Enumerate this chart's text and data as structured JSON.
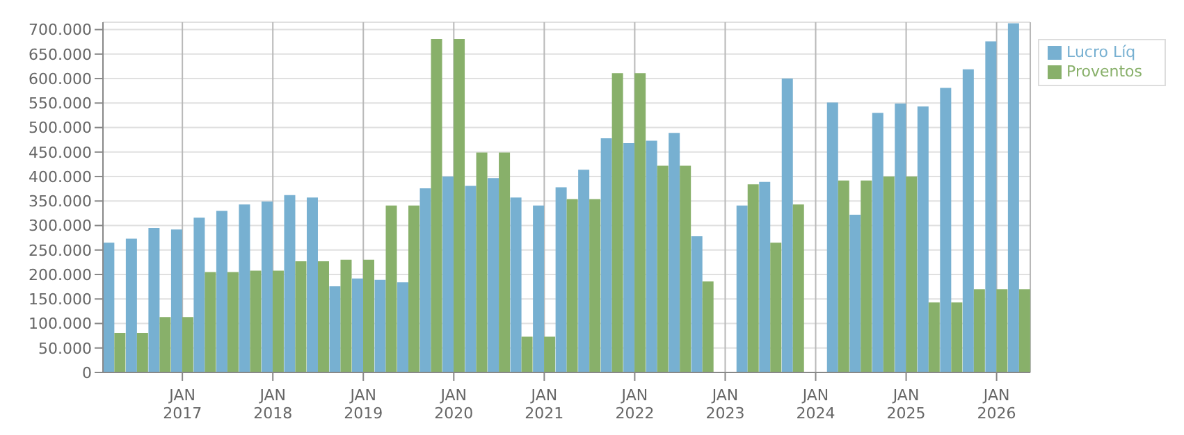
{
  "chart_data": {
    "type": "bar",
    "x": [
      "2016-04",
      "2016-07",
      "2016-10",
      "2017-01",
      "2017-04",
      "2017-07",
      "2017-10",
      "2018-01",
      "2018-04",
      "2018-07",
      "2018-10",
      "2019-01",
      "2019-04",
      "2019-07",
      "2019-10",
      "2020-01",
      "2020-04",
      "2020-07",
      "2020-10",
      "2021-01",
      "2021-04",
      "2021-07",
      "2021-10",
      "2022-01",
      "2022-04",
      "2022-07",
      "2022-10",
      "2023-01",
      "2023-04",
      "2023-07",
      "2023-10",
      "2024-01",
      "2024-04",
      "2024-07",
      "2024-10",
      "2025-01",
      "2025-04",
      "2025-07",
      "2025-10",
      "2026-01",
      "2026-04"
    ],
    "series": [
      {
        "name": "Lucro Líq",
        "color": "#77b0d1",
        "values": [
          265000,
          273000,
          295000,
          292000,
          316000,
          330000,
          343000,
          349000,
          362000,
          357000,
          176000,
          192000,
          189000,
          184000,
          376000,
          400000,
          381000,
          397000,
          357000,
          341000,
          378000,
          414000,
          478000,
          468000,
          473000,
          489000,
          278000,
          null,
          341000,
          389000,
          600000,
          null,
          551000,
          322000,
          530000,
          549000,
          543000,
          581000,
          619000,
          676000,
          713000
        ]
      },
      {
        "name": "Proventos",
        "color": "#88b06a",
        "values": [
          81000,
          81000,
          113000,
          113000,
          205000,
          205000,
          208000,
          208000,
          227000,
          227000,
          230000,
          230000,
          341000,
          341000,
          681000,
          681000,
          449000,
          449000,
          73000,
          73000,
          354000,
          354000,
          611000,
          611000,
          422000,
          422000,
          186000,
          null,
          384000,
          265000,
          343000,
          null,
          392000,
          392000,
          400000,
          400000,
          143000,
          143000,
          170000,
          170000,
          170000
        ]
      }
    ],
    "xlim": [
      "2016-02-15",
      "2026-05-15"
    ],
    "xticks": [
      {
        "value": "2017-01",
        "label": "JAN\n2017"
      },
      {
        "value": "2018-01",
        "label": "JAN\n2018"
      },
      {
        "value": "2019-01",
        "label": "JAN\n2019"
      },
      {
        "value": "2020-01",
        "label": "JAN\n2020"
      },
      {
        "value": "2021-01",
        "label": "JAN\n2021"
      },
      {
        "value": "2022-01",
        "label": "JAN\n2022"
      },
      {
        "value": "2023-01",
        "label": "JAN\n2023"
      },
      {
        "value": "2024-01",
        "label": "JAN\n2024"
      },
      {
        "value": "2025-01",
        "label": "JAN\n2025"
      },
      {
        "value": "2026-01",
        "label": "JAN\n2026"
      }
    ],
    "ylim": [
      0,
      715000
    ],
    "yticks": [
      {
        "value": 0,
        "label": "0"
      },
      {
        "value": 50000,
        "label": "50.000"
      },
      {
        "value": 100000,
        "label": "100.000"
      },
      {
        "value": 150000,
        "label": "150.000"
      },
      {
        "value": 200000,
        "label": "200.000"
      },
      {
        "value": 250000,
        "label": "250.000"
      },
      {
        "value": 300000,
        "label": "300.000"
      },
      {
        "value": 350000,
        "label": "350.000"
      },
      {
        "value": 400000,
        "label": "400.000"
      },
      {
        "value": 450000,
        "label": "450.000"
      },
      {
        "value": 500000,
        "label": "500.000"
      },
      {
        "value": 550000,
        "label": "550.000"
      },
      {
        "value": 600000,
        "label": "600.000"
      },
      {
        "value": 650000,
        "label": "650.000"
      },
      {
        "value": 700000,
        "label": "700.000"
      }
    ],
    "grid": true,
    "legend": "top right"
  }
}
